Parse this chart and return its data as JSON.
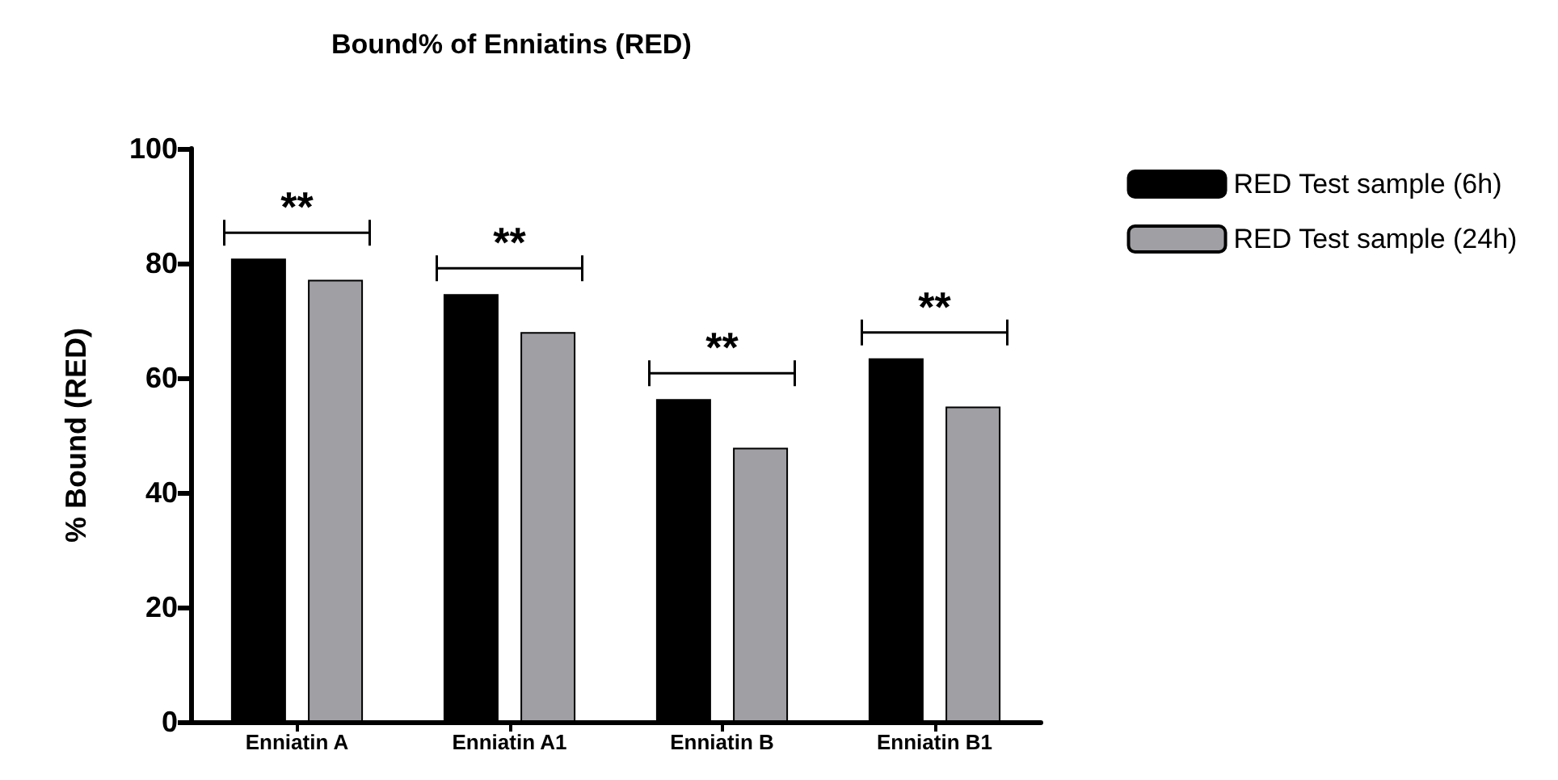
{
  "chart_data": {
    "type": "bar",
    "title": "Bound% of Enniatins (RED)",
    "ylabel": "% Bound (RED)",
    "categories": [
      "Enniatin A",
      "Enniatin A1",
      "Enniatin B",
      "Enniatin B1"
    ],
    "series": [
      {
        "name": "RED Test sample (6h)",
        "color": "#000000",
        "values": [
          80.8,
          74.6,
          56.3,
          63.4
        ]
      },
      {
        "name": "RED Test sample (24h)",
        "color": "#a0a0a4",
        "values": [
          77.1,
          68.0,
          47.8,
          55.0
        ]
      }
    ],
    "ylim": [
      0,
      100
    ],
    "yticks": [
      0,
      20,
      40,
      60,
      80,
      100
    ],
    "grid": false,
    "legend": "top right",
    "annotations": [
      "**",
      "**",
      "**",
      "**"
    ]
  }
}
